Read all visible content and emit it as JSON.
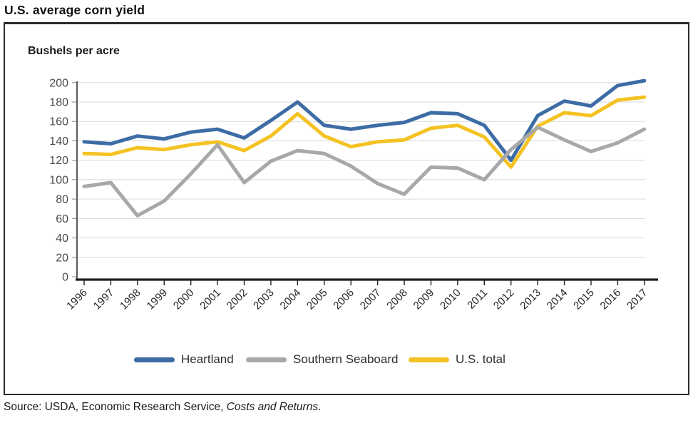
{
  "title": "U.S. average corn yield",
  "axis_unit_label": "Bushels per acre",
  "legend": [
    {
      "label": "Heartland",
      "color": "#3D6CA5"
    },
    {
      "label": "Southern Seaboard",
      "color": "#A8A8A8"
    },
    {
      "label": "U.S. total",
      "color": "#F4C223"
    }
  ],
  "source": {
    "prefix": "Source: USDA, Economic Research Service, ",
    "italic": "Costs and Returns",
    "suffix": "."
  },
  "chart_data": {
    "type": "line",
    "title": "U.S. average corn yield",
    "xlabel": "",
    "ylabel": "Bushels per acre",
    "ylim": [
      0,
      200
    ],
    "ytick_interval": 20,
    "grid": "horizontal",
    "legend_position": "bottom",
    "categories": [
      "1996",
      "1997",
      "1998",
      "1999",
      "2000",
      "2001",
      "2002",
      "2003",
      "2004",
      "2005",
      "2006",
      "2007",
      "2008",
      "2009",
      "2010",
      "2011",
      "2012",
      "2013",
      "2014",
      "2015",
      "2016",
      "2017"
    ],
    "series": [
      {
        "name": "Heartland",
        "color": "#3D6CA5",
        "values": [
          139,
          137,
          145,
          142,
          149,
          152,
          143,
          161,
          180,
          156,
          152,
          156,
          159,
          169,
          168,
          156,
          120,
          166,
          181,
          176,
          197,
          202
        ]
      },
      {
        "name": "Southern Seaboard",
        "color": "#A8A8A8",
        "values": [
          93,
          97,
          63,
          78,
          106,
          136,
          97,
          119,
          130,
          127,
          114,
          96,
          85,
          113,
          112,
          100,
          131,
          154,
          141,
          129,
          138,
          152
        ]
      },
      {
        "name": "U.S. total",
        "color": "#F4C223",
        "values": [
          127,
          126,
          133,
          131,
          136,
          139,
          130,
          145,
          168,
          145,
          134,
          139,
          141,
          153,
          156,
          144,
          113,
          155,
          169,
          166,
          182,
          185
        ]
      }
    ]
  }
}
